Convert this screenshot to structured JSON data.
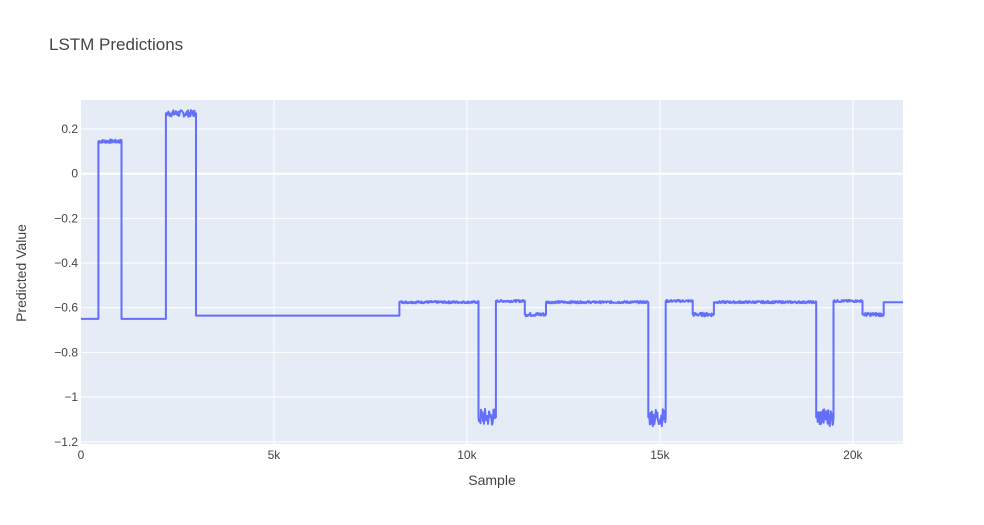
{
  "chart_data": {
    "type": "line",
    "title": "LSTM Predictions",
    "xlabel": "Sample",
    "ylabel": "Predicted Value",
    "xlim": [
      0,
      21300
    ],
    "ylim": [
      -1.21,
      0.33
    ],
    "grid": true,
    "x_ticks": [
      {
        "value": 0,
        "label": "0"
      },
      {
        "value": 5000,
        "label": "5k"
      },
      {
        "value": 10000,
        "label": "10k"
      },
      {
        "value": 15000,
        "label": "15k"
      },
      {
        "value": 20000,
        "label": "20k"
      }
    ],
    "y_ticks": [
      {
        "value": 0.2,
        "label": "0.2"
      },
      {
        "value": 0,
        "label": "0"
      },
      {
        "value": -0.2,
        "label": "−0.2"
      },
      {
        "value": -0.4,
        "label": "−0.4"
      },
      {
        "value": -0.6,
        "label": "−0.6"
      },
      {
        "value": -0.8,
        "label": "−0.8"
      },
      {
        "value": -1,
        "label": "−1"
      },
      {
        "value": -1.2,
        "label": "−1.2"
      }
    ],
    "series": [
      {
        "color": "#636efa",
        "segments": [
          {
            "x0": 0,
            "x1": 450,
            "y": -0.65
          },
          {
            "x0": 450,
            "x1": 1050,
            "y": 0.145,
            "noise": 0.008
          },
          {
            "x0": 1050,
            "x1": 2200,
            "y": -0.65
          },
          {
            "x0": 2200,
            "x1": 2980,
            "y": 0.27,
            "noise": 0.015
          },
          {
            "x0": 2980,
            "x1": 8250,
            "y": -0.635
          },
          {
            "x0": 8250,
            "x1": 10300,
            "y": -0.575,
            "noise": 0.005
          },
          {
            "x0": 10300,
            "x1": 10750,
            "y": -1.09,
            "noise": 0.04
          },
          {
            "x0": 10750,
            "x1": 11500,
            "y": -0.57,
            "noise": 0.005
          },
          {
            "x0": 11500,
            "x1": 12050,
            "y": -0.63,
            "noise": 0.008
          },
          {
            "x0": 12050,
            "x1": 14700,
            "y": -0.575,
            "noise": 0.005
          },
          {
            "x0": 14700,
            "x1": 15150,
            "y": -1.09,
            "noise": 0.04
          },
          {
            "x0": 15150,
            "x1": 15850,
            "y": -0.57,
            "noise": 0.005
          },
          {
            "x0": 15850,
            "x1": 16400,
            "y": -0.63,
            "noise": 0.008
          },
          {
            "x0": 16400,
            "x1": 19050,
            "y": -0.575,
            "noise": 0.005
          },
          {
            "x0": 19050,
            "x1": 19500,
            "y": -1.09,
            "noise": 0.04
          },
          {
            "x0": 19500,
            "x1": 20250,
            "y": -0.57,
            "noise": 0.005
          },
          {
            "x0": 20250,
            "x1": 20800,
            "y": -0.63,
            "noise": 0.008
          },
          {
            "x0": 20800,
            "x1": 21300,
            "y": -0.575
          }
        ]
      }
    ]
  }
}
